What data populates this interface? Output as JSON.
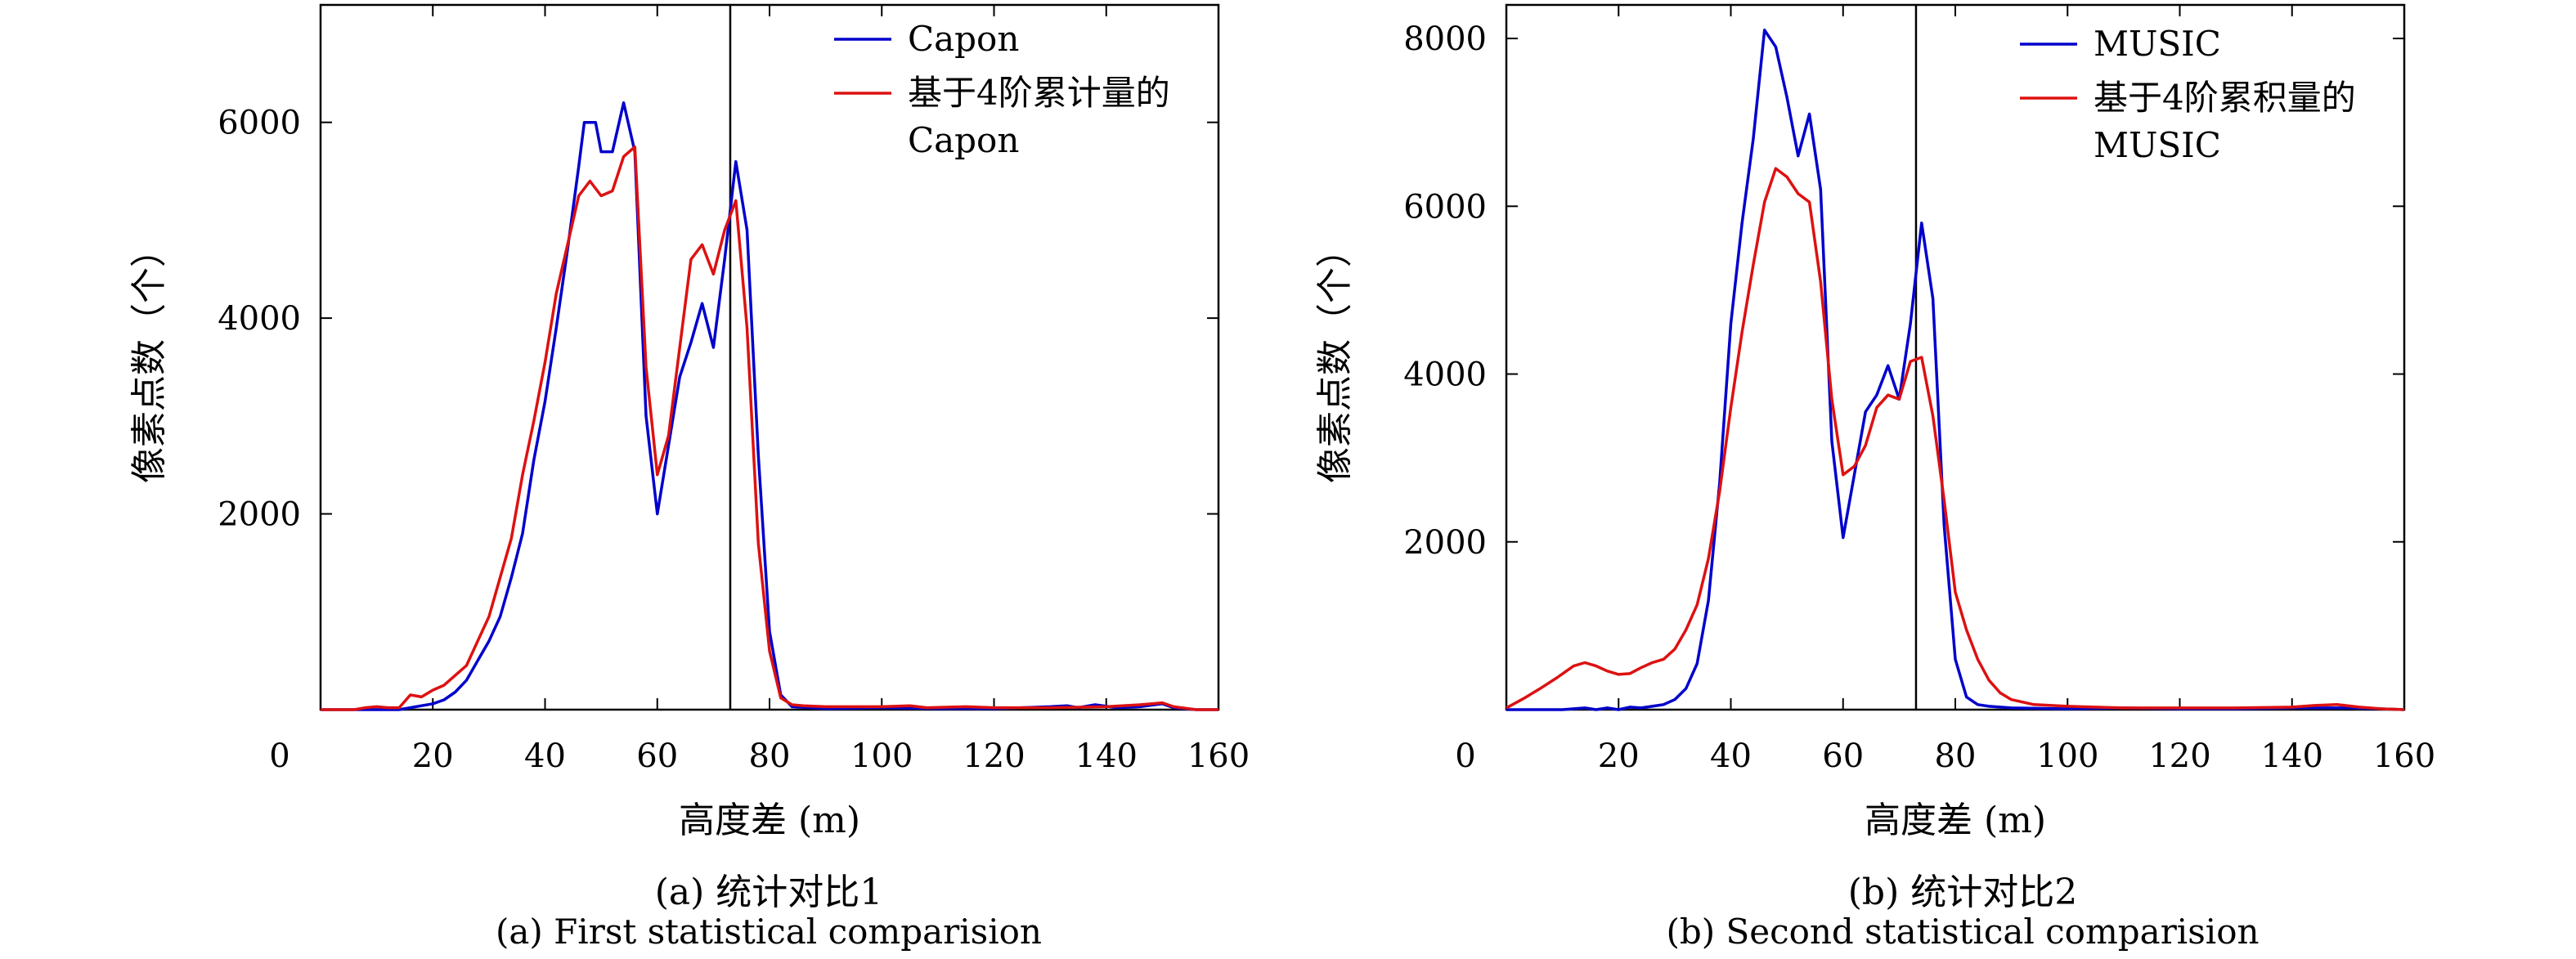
{
  "charts": [
    {
      "id": "a",
      "caption_cn": "(a) 统计对比1",
      "caption_en": "(a) First statistical comparision"
    },
    {
      "id": "b",
      "caption_cn": "(b) 统计对比2",
      "caption_en": "(b) Second statistical comparision"
    }
  ],
  "colors": {
    "blue": "#0000cc",
    "red": "#dd1111",
    "axis": "#000000"
  },
  "chart_data": [
    {
      "type": "line",
      "title": "",
      "xlabel": "高度差 (m)",
      "ylabel": "像素点数（个）",
      "xlim": [
        0,
        160
      ],
      "ylim": [
        0,
        7200
      ],
      "xticks": [
        0,
        20,
        40,
        60,
        80,
        100,
        120,
        140,
        160
      ],
      "yticks": [
        2000,
        4000,
        6000
      ],
      "vline_x": 73,
      "legend_position": "top-right",
      "series": [
        {
          "name_lines": [
            "Capon"
          ],
          "color": "#0000cc",
          "points": [
            [
              0,
              0
            ],
            [
              6,
              0
            ],
            [
              8,
              0
            ],
            [
              10,
              0
            ],
            [
              12,
              0
            ],
            [
              14,
              0
            ],
            [
              16,
              20
            ],
            [
              18,
              40
            ],
            [
              20,
              60
            ],
            [
              22,
              100
            ],
            [
              24,
              180
            ],
            [
              26,
              300
            ],
            [
              28,
              500
            ],
            [
              30,
              700
            ],
            [
              32,
              950
            ],
            [
              34,
              1350
            ],
            [
              36,
              1800
            ],
            [
              38,
              2550
            ],
            [
              40,
              3150
            ],
            [
              42,
              3900
            ],
            [
              44,
              4700
            ],
            [
              46,
              5550
            ],
            [
              47,
              6000
            ],
            [
              49,
              6000
            ],
            [
              50,
              5700
            ],
            [
              52,
              5700
            ],
            [
              54,
              6200
            ],
            [
              56,
              5700
            ],
            [
              58,
              3000
            ],
            [
              60,
              2000
            ],
            [
              62,
              2700
            ],
            [
              64,
              3400
            ],
            [
              66,
              3750
            ],
            [
              68,
              4150
            ],
            [
              70,
              3700
            ],
            [
              72,
              4600
            ],
            [
              74,
              5600
            ],
            [
              76,
              4900
            ],
            [
              78,
              2600
            ],
            [
              80,
              800
            ],
            [
              82,
              150
            ],
            [
              84,
              30
            ],
            [
              90,
              10
            ],
            [
              100,
              20
            ],
            [
              110,
              10
            ],
            [
              120,
              10
            ],
            [
              125,
              20
            ],
            [
              130,
              30
            ],
            [
              133,
              40
            ],
            [
              135,
              20
            ],
            [
              138,
              50
            ],
            [
              142,
              20
            ],
            [
              146,
              30
            ],
            [
              150,
              60
            ],
            [
              152,
              20
            ],
            [
              156,
              0
            ],
            [
              160,
              0
            ]
          ]
        },
        {
          "name_lines": [
            "基于4阶累计量的",
            "Capon"
          ],
          "color": "#dd1111",
          "points": [
            [
              0,
              0
            ],
            [
              6,
              0
            ],
            [
              8,
              20
            ],
            [
              10,
              30
            ],
            [
              12,
              20
            ],
            [
              14,
              20
            ],
            [
              16,
              150
            ],
            [
              18,
              130
            ],
            [
              20,
              200
            ],
            [
              22,
              250
            ],
            [
              24,
              350
            ],
            [
              26,
              450
            ],
            [
              28,
              700
            ],
            [
              30,
              950
            ],
            [
              32,
              1350
            ],
            [
              34,
              1750
            ],
            [
              36,
              2400
            ],
            [
              38,
              2950
            ],
            [
              40,
              3550
            ],
            [
              42,
              4250
            ],
            [
              44,
              4750
            ],
            [
              46,
              5250
            ],
            [
              48,
              5400
            ],
            [
              50,
              5250
            ],
            [
              52,
              5300
            ],
            [
              54,
              5650
            ],
            [
              56,
              5750
            ],
            [
              58,
              3500
            ],
            [
              60,
              2400
            ],
            [
              62,
              2800
            ],
            [
              64,
              3700
            ],
            [
              66,
              4600
            ],
            [
              68,
              4750
            ],
            [
              70,
              4450
            ],
            [
              72,
              4900
            ],
            [
              74,
              5200
            ],
            [
              76,
              3900
            ],
            [
              78,
              1700
            ],
            [
              80,
              600
            ],
            [
              82,
              120
            ],
            [
              84,
              50
            ],
            [
              86,
              40
            ],
            [
              90,
              30
            ],
            [
              100,
              30
            ],
            [
              105,
              40
            ],
            [
              108,
              20
            ],
            [
              115,
              30
            ],
            [
              120,
              20
            ],
            [
              130,
              20
            ],
            [
              140,
              30
            ],
            [
              146,
              50
            ],
            [
              150,
              70
            ],
            [
              152,
              30
            ],
            [
              156,
              0
            ],
            [
              160,
              0
            ]
          ]
        }
      ]
    },
    {
      "type": "line",
      "title": "",
      "xlabel": "高度差 (m)",
      "ylabel": "像素点数（个）",
      "xlim": [
        0,
        160
      ],
      "ylim": [
        0,
        8400
      ],
      "xticks": [
        0,
        20,
        40,
        60,
        80,
        100,
        120,
        140,
        160
      ],
      "yticks": [
        2000,
        4000,
        6000,
        8000
      ],
      "vline_x": 73,
      "legend_position": "top-right",
      "series": [
        {
          "name_lines": [
            "MUSIC"
          ],
          "color": "#0000cc",
          "points": [
            [
              0,
              0
            ],
            [
              10,
              0
            ],
            [
              14,
              20
            ],
            [
              16,
              0
            ],
            [
              18,
              20
            ],
            [
              20,
              0
            ],
            [
              22,
              30
            ],
            [
              24,
              20
            ],
            [
              26,
              40
            ],
            [
              28,
              60
            ],
            [
              30,
              120
            ],
            [
              32,
              250
            ],
            [
              34,
              550
            ],
            [
              36,
              1300
            ],
            [
              38,
              2700
            ],
            [
              40,
              4600
            ],
            [
              42,
              5800
            ],
            [
              44,
              6800
            ],
            [
              46,
              8100
            ],
            [
              48,
              7900
            ],
            [
              50,
              7300
            ],
            [
              52,
              6600
            ],
            [
              54,
              7100
            ],
            [
              56,
              6200
            ],
            [
              58,
              3200
            ],
            [
              60,
              2050
            ],
            [
              62,
              2800
            ],
            [
              64,
              3550
            ],
            [
              66,
              3750
            ],
            [
              68,
              4100
            ],
            [
              70,
              3700
            ],
            [
              72,
              4600
            ],
            [
              74,
              5800
            ],
            [
              76,
              4900
            ],
            [
              78,
              2200
            ],
            [
              80,
              600
            ],
            [
              82,
              150
            ],
            [
              84,
              60
            ],
            [
              86,
              40
            ],
            [
              90,
              20
            ],
            [
              100,
              10
            ],
            [
              110,
              20
            ],
            [
              120,
              10
            ],
            [
              130,
              10
            ],
            [
              140,
              20
            ],
            [
              150,
              20
            ],
            [
              156,
              10
            ],
            [
              160,
              0
            ]
          ]
        },
        {
          "name_lines": [
            "基于4阶累积量的",
            "MUSIC"
          ],
          "color": "#dd1111",
          "points": [
            [
              0,
              20
            ],
            [
              3,
              130
            ],
            [
              6,
              250
            ],
            [
              9,
              380
            ],
            [
              12,
              520
            ],
            [
              14,
              560
            ],
            [
              16,
              520
            ],
            [
              18,
              460
            ],
            [
              20,
              420
            ],
            [
              22,
              430
            ],
            [
              24,
              500
            ],
            [
              26,
              560
            ],
            [
              28,
              600
            ],
            [
              30,
              720
            ],
            [
              32,
              950
            ],
            [
              34,
              1250
            ],
            [
              36,
              1800
            ],
            [
              38,
              2600
            ],
            [
              40,
              3600
            ],
            [
              42,
              4500
            ],
            [
              44,
              5300
            ],
            [
              46,
              6050
            ],
            [
              48,
              6450
            ],
            [
              50,
              6350
            ],
            [
              52,
              6150
            ],
            [
              54,
              6050
            ],
            [
              56,
              5100
            ],
            [
              58,
              3700
            ],
            [
              60,
              2800
            ],
            [
              62,
              2900
            ],
            [
              64,
              3150
            ],
            [
              66,
              3600
            ],
            [
              68,
              3750
            ],
            [
              70,
              3700
            ],
            [
              72,
              4150
            ],
            [
              74,
              4200
            ],
            [
              76,
              3500
            ],
            [
              78,
              2500
            ],
            [
              80,
              1400
            ],
            [
              82,
              950
            ],
            [
              84,
              600
            ],
            [
              86,
              350
            ],
            [
              88,
              200
            ],
            [
              90,
              120
            ],
            [
              94,
              60
            ],
            [
              100,
              40
            ],
            [
              110,
              20
            ],
            [
              120,
              20
            ],
            [
              130,
              20
            ],
            [
              140,
              30
            ],
            [
              144,
              50
            ],
            [
              148,
              60
            ],
            [
              152,
              30
            ],
            [
              156,
              10
            ],
            [
              160,
              0
            ]
          ]
        }
      ]
    }
  ]
}
